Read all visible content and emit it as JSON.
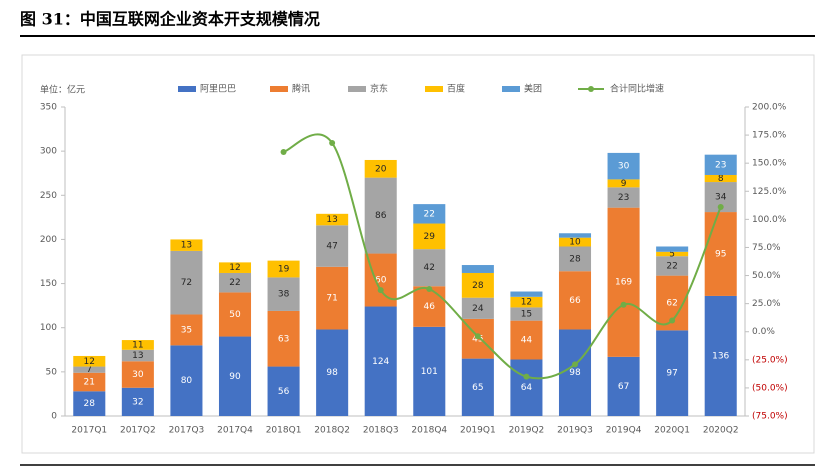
{
  "chart_data": {
    "type": "bar-line",
    "title": "图 31：中国互联网企业资本开支规模情况",
    "y_axis_label": "单位：亿元",
    "categories": [
      "2017Q1",
      "2017Q2",
      "2017Q3",
      "2017Q4",
      "2018Q1",
      "2018Q2",
      "2018Q3",
      "2018Q4",
      "2019Q1",
      "2019Q2",
      "2019Q3",
      "2019Q4",
      "2020Q1",
      "2020Q2"
    ],
    "ylim": [
      0,
      350
    ],
    "yticks": [
      0,
      50,
      100,
      150,
      200,
      250,
      300,
      350
    ],
    "y2lim": [
      -75,
      200
    ],
    "y2ticks": [
      {
        "value": -75,
        "label": "(75.0%)"
      },
      {
        "value": -50,
        "label": "(50.0%)"
      },
      {
        "value": -25,
        "label": "(25.0%)"
      },
      {
        "value": 0,
        "label": "0.0%"
      },
      {
        "value": 25,
        "label": "25.0%"
      },
      {
        "value": 50,
        "label": "50.0%"
      },
      {
        "value": 75,
        "label": "75.0%"
      },
      {
        "value": 100,
        "label": "100.0%"
      },
      {
        "value": 125,
        "label": "125.0%"
      },
      {
        "value": 150,
        "label": "150.0%"
      },
      {
        "value": 175,
        "label": "175.0%"
      },
      {
        "value": 200,
        "label": "200.0%"
      }
    ],
    "series": [
      {
        "name": "阿里巴巴",
        "color": "#4472c4",
        "values": [
          28,
          32,
          80,
          90,
          56,
          98,
          124,
          101,
          65,
          64,
          98,
          67,
          97,
          136
        ]
      },
      {
        "name": "腾讯",
        "color": "#ed7d31",
        "values": [
          21,
          30,
          35,
          50,
          63,
          71,
          60,
          46,
          45,
          44,
          66,
          169,
          62,
          95
        ]
      },
      {
        "name": "京东",
        "color": "#a5a5a5",
        "values": [
          7,
          13,
          72,
          22,
          38,
          47,
          86,
          42,
          24,
          15,
          28,
          23,
          22,
          34
        ]
      },
      {
        "name": "百度",
        "color": "#ffc000",
        "values": [
          12,
          11,
          13,
          12,
          19,
          13,
          20,
          29,
          28,
          12,
          10,
          9,
          5,
          8
        ]
      },
      {
        "name": "美团",
        "color": "#5b9bd5",
        "values": [
          null,
          null,
          null,
          null,
          null,
          null,
          null,
          22,
          9,
          6,
          5,
          30,
          6,
          23
        ],
        "value_labels": [
          null,
          null,
          null,
          null,
          null,
          null,
          null,
          "22",
          null,
          null,
          null,
          "30",
          null,
          "23"
        ]
      },
      {
        "name": "合计同比增速",
        "color": "#70ad47",
        "type": "line",
        "axis": "y2",
        "values": [
          null,
          null,
          null,
          null,
          160,
          168,
          37,
          38,
          -4,
          -40,
          -29,
          24,
          10,
          111
        ]
      }
    ]
  }
}
